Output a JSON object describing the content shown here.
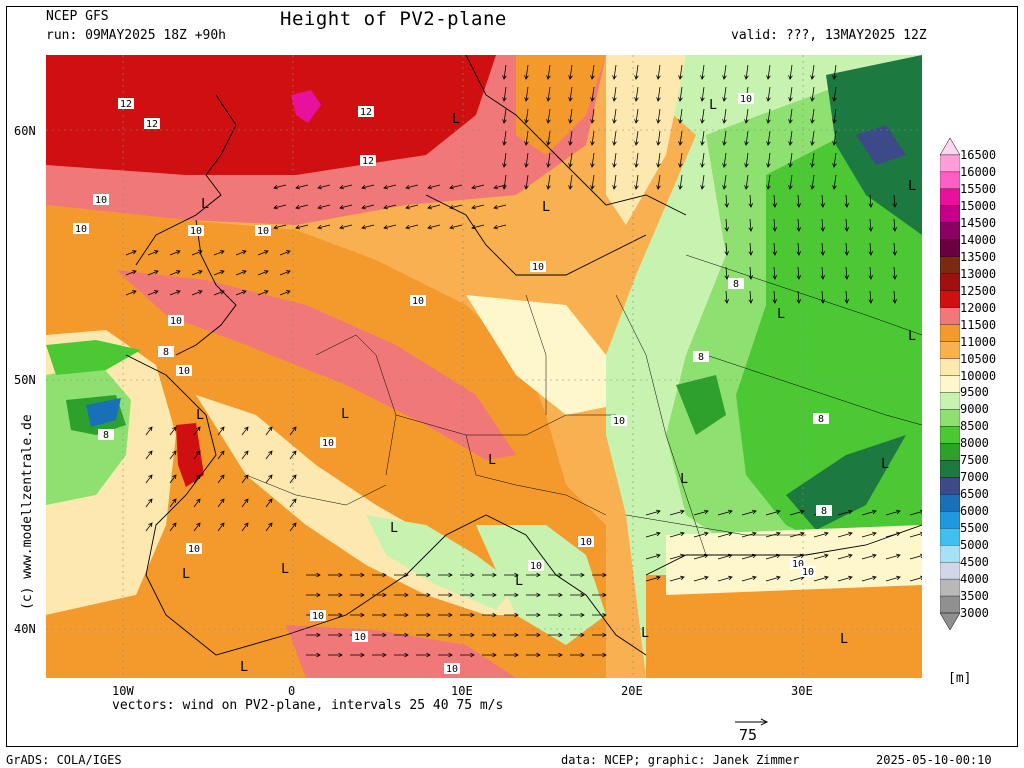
{
  "header": {
    "model": "NCEP GFS",
    "run": "run: 09MAY2025 18Z +90h",
    "title": "Height of PV2-plane",
    "valid": "valid: ???, 13MAY2025 12Z"
  },
  "axes": {
    "lat_labels": [
      "60N",
      "50N",
      "40N"
    ],
    "lon_labels": [
      "10W",
      "0",
      "10E",
      "20E",
      "30E"
    ]
  },
  "vectors_note": "vectors: wind on PV2-plane, intervals 25 40 75 m/s",
  "ref_vector_label": "75",
  "unit": "[m]",
  "watermark": "(c) www.modellzentrale.de",
  "footer": {
    "left": "GrADS: COLA/IGES",
    "credit": "data: NCEP; graphic: Janek Zimmer",
    "timestamp": "2025-05-10-00:10"
  },
  "legend": {
    "levels": [
      "16500",
      "16000",
      "15500",
      "15000",
      "14500",
      "14000",
      "13500",
      "13000",
      "12500",
      "12000",
      "11500",
      "11000",
      "10500",
      "10000",
      "9500",
      "9000",
      "8500",
      "8000",
      "7500",
      "7000",
      "6500",
      "6000",
      "5500",
      "5000",
      "4500",
      "4000",
      "3500",
      "3000"
    ],
    "colors": [
      "#ffd6f0",
      "#ff9ed8",
      "#ff5ec4",
      "#e8119e",
      "#c4008a",
      "#8c0064",
      "#6a0040",
      "#7a2a10",
      "#a01010",
      "#d01010",
      "#f07878",
      "#f49a2c",
      "#f8b050",
      "#fde9b0",
      "#fff7cc",
      "#c8f2b0",
      "#8ee070",
      "#4cc834",
      "#2ea02c",
      "#1c7a40",
      "#3c4a8a",
      "#1870b8",
      "#2098e0",
      "#40c0f0",
      "#a8e0f8",
      "#d0d8e8",
      "#b8b8b8",
      "#909090"
    ]
  },
  "map": {
    "contour_labels": [
      "12",
      "12",
      "12",
      "12",
      "L",
      "10",
      "L",
      "10",
      "10",
      "L",
      "10",
      "10",
      "8",
      "10",
      "L",
      "L",
      "10",
      "8",
      "10",
      "L",
      "L",
      "8",
      "L",
      "10",
      "8",
      "L",
      "L",
      "L",
      "10",
      "L",
      "8",
      "L",
      "10",
      "10",
      "L",
      "L",
      "10",
      "L",
      "10",
      "10",
      "L"
    ],
    "lows": [
      "L",
      "L",
      "L",
      "L",
      "L",
      "L",
      "L",
      "L",
      "L",
      "L",
      "L",
      "L",
      "L",
      "L",
      "L",
      "L",
      "L",
      "L"
    ]
  }
}
